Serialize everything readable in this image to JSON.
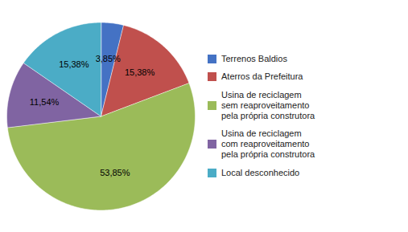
{
  "chart_data": {
    "type": "pie",
    "categories": [
      "Terrenos Baldios",
      "Aterros da Prefeitura",
      "Usina de reciclagem\nsem reaproveitamento\npela própria construtora",
      "Usina de reciclagem\ncom reaproveitamento\npela própria construtora",
      "Local desconhecido"
    ],
    "values": [
      3.85,
      15.38,
      53.85,
      11.54,
      15.38
    ],
    "value_labels": [
      "3,85%",
      "15,38%",
      "53,85%",
      "11,54%",
      "15,38%"
    ],
    "colors": [
      "#4472C4",
      "#C0504D",
      "#9BBB59",
      "#8064A2",
      "#4BACC6"
    ],
    "data_labels": true,
    "legend": "right"
  }
}
